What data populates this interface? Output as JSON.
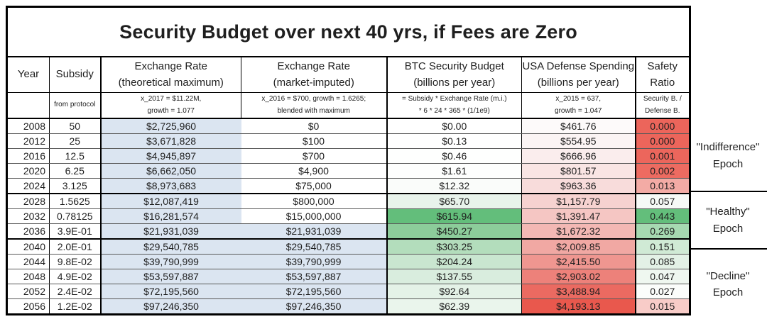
{
  "title": "Security Budget over next 40 yrs, if Fees are Zero",
  "colors": {
    "column_blue": "#dbe5f1",
    "green_max": "#63be7b",
    "red_max": "#e9584d",
    "grid_thin": "#595959",
    "grid_thick": "#000000"
  },
  "chart_data": {
    "type": "table",
    "title": "Security Budget over next 40 yrs, if Fees are Zero",
    "columns": [
      {
        "label1": "Year",
        "label2": "",
        "sub1": "",
        "sub2": ""
      },
      {
        "label1": "Subsidy",
        "label2": "",
        "sub1": "from protocol",
        "sub2": ""
      },
      {
        "label1": "Exchange Rate",
        "label2": "(theoretical maximum)",
        "sub1": "x_2017 = $11.22M,",
        "sub2": "growth = 1.077"
      },
      {
        "label1": "Exchange Rate",
        "label2": "(market-imputed)",
        "sub1": "x_2016 = $700, growth = 1.6265;",
        "sub2": "blended with maximum"
      },
      {
        "label1": "BTC Security Budget",
        "label2": "(billions per year)",
        "sub1": "= Subsidy *  Exchange Rate (m.i.)",
        "sub2": "* 6 * 24 * 365 * (1/1e9)"
      },
      {
        "label1": "USA Defense Spending",
        "label2": "(billions per year)",
        "sub1": "x_2015 = 637,",
        "sub2": "growth = 1.047"
      },
      {
        "label1": "Safety",
        "label2": "Ratio",
        "sub1": "Security B. /",
        "sub2": "Defense B."
      }
    ],
    "rows": [
      {
        "year": "2008",
        "subsidy": "50",
        "er_max": "$2,725,960",
        "er_mkt": "$0",
        "btc": "$0.00",
        "usa": "$461.76",
        "safety": "0.000",
        "bg": {
          "er_max": "#dbe5f1",
          "er_mkt": "#ffffff",
          "btc": "#ffffff",
          "usa": "#fdfafa",
          "safety": "#ec655b"
        }
      },
      {
        "year": "2012",
        "subsidy": "25",
        "er_max": "$3,671,828",
        "er_mkt": "$100",
        "btc": "$0.13",
        "usa": "$554.95",
        "safety": "0.000",
        "bg": {
          "er_max": "#dbe5f1",
          "er_mkt": "#ffffff",
          "btc": "#ffffff",
          "usa": "#fbf4f4",
          "safety": "#ec655b"
        }
      },
      {
        "year": "2016",
        "subsidy": "12.5",
        "er_max": "$4,945,897",
        "er_mkt": "$700",
        "btc": "$0.46",
        "usa": "$666.96",
        "safety": "0.001",
        "bg": {
          "er_max": "#dbe5f1",
          "er_mkt": "#ffffff",
          "btc": "#fefffe",
          "usa": "#faeded",
          "safety": "#ec665c"
        }
      },
      {
        "year": "2020",
        "subsidy": "6.25",
        "er_max": "$6,662,050",
        "er_mkt": "$4,900",
        "btc": "$1.61",
        "usa": "$801.57",
        "safety": "0.002",
        "bg": {
          "er_max": "#dbe5f1",
          "er_mkt": "#ffffff",
          "btc": "#fdfefd",
          "usa": "#f9e5e4",
          "safety": "#ed6b61"
        }
      },
      {
        "year": "2024",
        "subsidy": "3.125",
        "er_max": "$8,973,683",
        "er_mkt": "$75,000",
        "btc": "$12.32",
        "usa": "$963.36",
        "safety": "0.013",
        "bg": {
          "er_max": "#dbe5f1",
          "er_mkt": "#ffffff",
          "btc": "#fafcfa",
          "usa": "#f8dcdb",
          "safety": "#f3aba5"
        }
      },
      {
        "year": "2028",
        "subsidy": "1.5625",
        "er_max": "$12,087,419",
        "er_mkt": "$800,000",
        "btc": "$65.70",
        "usa": "$1,157.79",
        "safety": "0.057",
        "bg": {
          "er_max": "#dbe5f1",
          "er_mkt": "#ffffff",
          "btc": "#e8f3eb",
          "usa": "#f6d2d0",
          "safety": "#f6f9f6"
        }
      },
      {
        "year": "2032",
        "subsidy": "0.78125",
        "er_max": "$16,281,574",
        "er_mkt": "$15,000,000",
        "btc": "$615.94",
        "usa": "$1,391.47",
        "safety": "0.443",
        "bg": {
          "er_max": "#dbe5f1",
          "er_mkt": "#ffffff",
          "btc": "#63be7b",
          "usa": "#f5c6c3",
          "safety": "#63be7b"
        }
      },
      {
        "year": "2036",
        "subsidy": "3.9E-01",
        "er_max": "$21,931,039",
        "er_mkt": "$21,931,039",
        "btc": "$450.27",
        "usa": "$1,672.32",
        "safety": "0.269",
        "bg": {
          "er_max": "#dbe5f1",
          "er_mkt": "#dbe5f1",
          "btc": "#8ccc9a",
          "usa": "#f3b8b4",
          "safety": "#a6d9b1"
        }
      },
      {
        "year": "2040",
        "subsidy": "2.0E-01",
        "er_max": "$29,540,785",
        "er_mkt": "$29,540,785",
        "btc": "$303.25",
        "usa": "$2,009.85",
        "safety": "0.151",
        "bg": {
          "er_max": "#dbe5f1",
          "er_mkt": "#dbe5f1",
          "btc": "#b3ddbc",
          "usa": "#f1a8a3",
          "safety": "#d0ead5"
        }
      },
      {
        "year": "2044",
        "subsidy": "9.8E-02",
        "er_max": "$39,790,999",
        "er_mkt": "$39,790,999",
        "btc": "$204.24",
        "usa": "$2,415.50",
        "safety": "0.085",
        "bg": {
          "er_max": "#dbe5f1",
          "er_mkt": "#dbe5f1",
          "btc": "#c9e6d0",
          "usa": "#ef9690",
          "safety": "#e3f1e6"
        }
      },
      {
        "year": "2048",
        "subsidy": "4.9E-02",
        "er_max": "$53,597,887",
        "er_mkt": "$53,597,887",
        "btc": "$137.55",
        "usa": "$2,903.02",
        "safety": "0.047",
        "bg": {
          "er_max": "#dbe5f1",
          "er_mkt": "#dbe5f1",
          "btc": "#d9edde",
          "usa": "#ed817a",
          "safety": "#eff7f0"
        }
      },
      {
        "year": "2052",
        "subsidy": "2.4E-02",
        "er_max": "$72,195,560",
        "er_mkt": "$72,195,560",
        "btc": "$92.64",
        "usa": "$3,488.94",
        "safety": "0.027",
        "bg": {
          "er_max": "#dbe5f1",
          "er_mkt": "#dbe5f1",
          "btc": "#e4f2e7",
          "usa": "#eb6a61",
          "safety": "#fbfdfb"
        }
      },
      {
        "year": "2056",
        "subsidy": "1.2E-02",
        "er_max": "$97,246,350",
        "er_mkt": "$97,246,350",
        "btc": "$62.39",
        "usa": "$4,193.13",
        "safety": "0.015",
        "bg": {
          "er_max": "#dbe5f1",
          "er_mkt": "#dbe5f1",
          "btc": "#eaf5ec",
          "usa": "#e9584d",
          "safety": "#f8ccc8"
        }
      }
    ],
    "epochs": [
      {
        "line1": "\"Indifference\"",
        "line2": "Epoch",
        "rows": 5
      },
      {
        "line1": "\"Healthy\"",
        "line2": "Epoch",
        "rows": 3
      },
      {
        "line1": "\"Decline\"",
        "line2": "Epoch",
        "rows": 5
      }
    ]
  }
}
